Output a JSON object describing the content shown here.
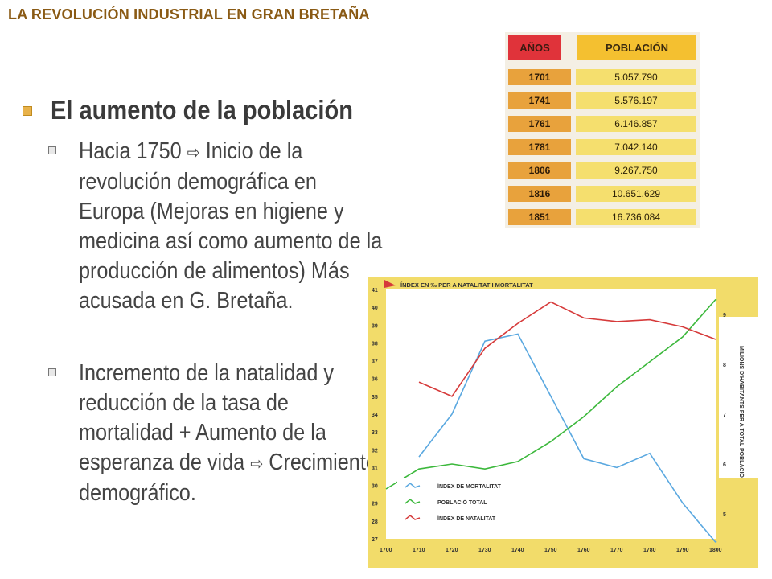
{
  "header": {
    "title": "LA REVOLUCIÓN INDUSTRIAL EN GRAN BRETAÑA"
  },
  "content": {
    "heading": "El aumento de la población",
    "bullets": [
      {
        "before_arrow": "Hacia 1750 ",
        "arrow": "⇨",
        "after_arrow": " Inicio de la revolución demográfica en Europa (Mejoras en higiene y medicina así como aumento de la producción de alimentos) Más acusada en G. Bretaña."
      },
      {
        "before_arrow": "Incremento de la natalidad y reducción de la tasa de mortalidad + Aumento de la esperanza de vida ",
        "arrow": "⇨",
        "after_arrow": " Crecimiento demográfico."
      }
    ]
  },
  "table": {
    "headers": [
      "AÑOS",
      "POBLACIÓN"
    ],
    "rows": [
      [
        "1701",
        "5.057.790"
      ],
      [
        "1741",
        "5.576.197"
      ],
      [
        "1761",
        "6.146.857"
      ],
      [
        "1781",
        "7.042.140"
      ],
      [
        "1806",
        "9.267.750"
      ],
      [
        "1816",
        "10.651.629"
      ],
      [
        "1851",
        "16.736.084"
      ]
    ]
  },
  "chart_data": {
    "type": "line",
    "title": "ÍNDEX EN ‰ PER A NATALITAT I MORTALITAT",
    "ylabel_right": "MILIONS D'HABITANTS PER A TOTAL POBLACIÓ",
    "x": [
      1700,
      1710,
      1720,
      1730,
      1740,
      1750,
      1760,
      1770,
      1780,
      1790,
      1800
    ],
    "x_ticks": [
      "1700",
      "1710",
      "1720",
      "1730",
      "1740",
      "1750",
      "1760",
      "1770",
      "1780",
      "1790",
      "1800"
    ],
    "ylim_left": [
      27,
      41
    ],
    "y_ticks_left": [
      "41",
      "40",
      "39",
      "38",
      "37",
      "36",
      "35",
      "34",
      "33",
      "32",
      "31",
      "30",
      "29",
      "28",
      "27"
    ],
    "ylim_right": [
      4.5,
      9.5
    ],
    "y_ticks_right": [
      "9",
      "8",
      "7",
      "6",
      "5"
    ],
    "series": [
      {
        "name": "ÍNDEX DE MORTALITAT",
        "axis": "left",
        "color": "#5aa8e0",
        "points": [
          [
            1710,
            31.6
          ],
          [
            1720,
            34.0
          ],
          [
            1730,
            38.1
          ],
          [
            1740,
            38.5
          ],
          [
            1750,
            35.0
          ],
          [
            1760,
            31.5
          ],
          [
            1770,
            31.0
          ],
          [
            1780,
            31.8
          ],
          [
            1790,
            29.0
          ],
          [
            1800,
            26.8
          ]
        ]
      },
      {
        "name": "POBLACIÓ TOTAL",
        "axis": "right",
        "color": "#3cb83c",
        "points": [
          [
            1700,
            5.5
          ],
          [
            1710,
            5.9
          ],
          [
            1720,
            6.0
          ],
          [
            1730,
            5.9
          ],
          [
            1740,
            6.05
          ],
          [
            1750,
            6.45
          ],
          [
            1760,
            6.95
          ],
          [
            1770,
            7.55
          ],
          [
            1780,
            8.05
          ],
          [
            1790,
            8.55
          ],
          [
            1800,
            9.3
          ]
        ]
      },
      {
        "name": "ÍNDEX DE NATALITAT",
        "axis": "left",
        "color": "#d63a3a",
        "points": [
          [
            1710,
            35.8
          ],
          [
            1720,
            35.0
          ],
          [
            1730,
            37.7
          ],
          [
            1740,
            39.1
          ],
          [
            1750,
            40.3
          ],
          [
            1760,
            39.4
          ],
          [
            1770,
            39.2
          ],
          [
            1780,
            39.3
          ],
          [
            1790,
            38.9
          ],
          [
            1800,
            38.2
          ]
        ]
      }
    ],
    "legend": "bottom-left",
    "grid": false,
    "colors": {
      "background": "#ffffff",
      "frame": "#f2dc6a"
    }
  }
}
